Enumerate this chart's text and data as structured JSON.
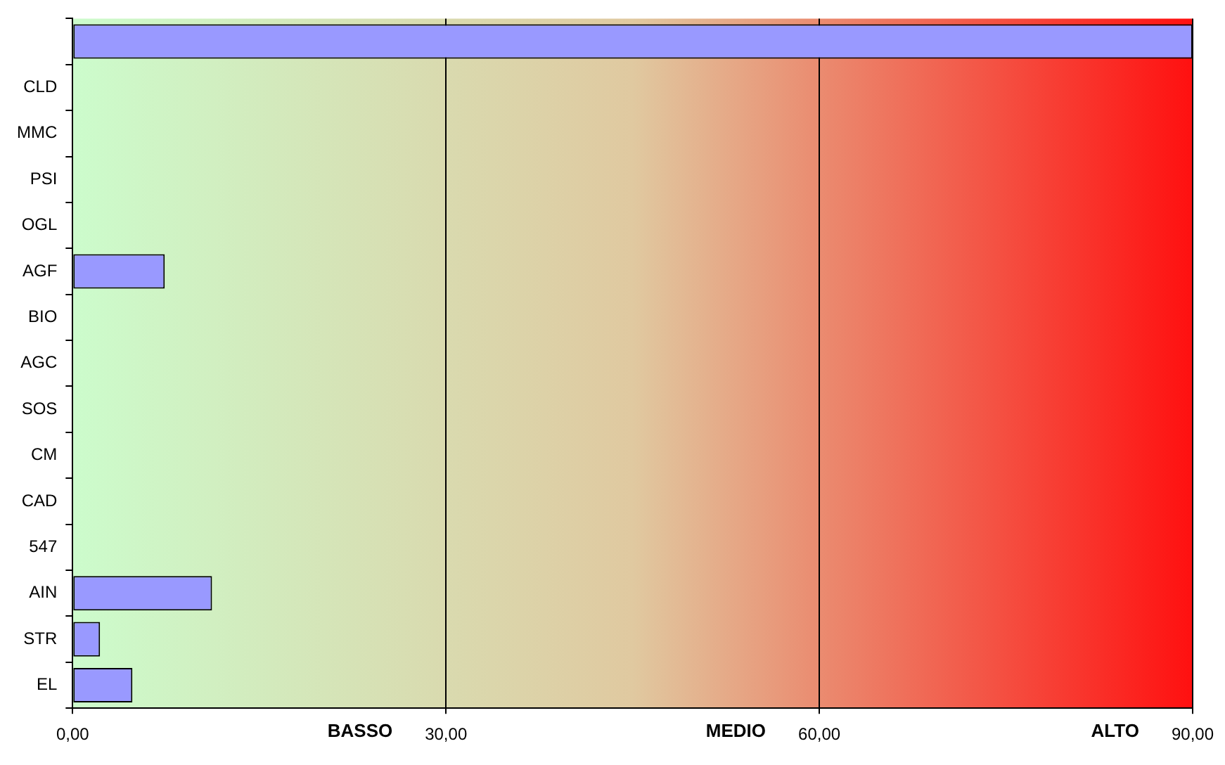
{
  "chart_data": {
    "type": "bar",
    "orientation": "horizontal",
    "categories": [
      null,
      "CLD",
      "MMC",
      "PSI",
      "OGL",
      "AGF",
      "BIO",
      "AGC",
      "SOS",
      "CM",
      "CAD",
      "547",
      "AIN",
      "STR",
      "EL"
    ],
    "values": [
      90,
      null,
      null,
      null,
      null,
      7.4,
      null,
      null,
      null,
      null,
      null,
      null,
      11.2,
      2.2,
      4.8
    ],
    "color": "#9999ff",
    "xlim": [
      0,
      90
    ],
    "xticks": [
      {
        "value": 0,
        "label": "0,00"
      },
      {
        "value": 30,
        "label": "30,00"
      },
      {
        "value": 60,
        "label": "60,00"
      },
      {
        "value": 90,
        "label": "90,00"
      }
    ],
    "bands": [
      {
        "axis": "x",
        "from": 0,
        "to": 30,
        "label": "BASSO",
        "color": "#ccfccc"
      },
      {
        "axis": "x",
        "from": 30,
        "to": 60,
        "label": "MEDIO",
        "color": "#e0c9a0"
      },
      {
        "axis": "x",
        "from": 60,
        "to": 90,
        "label": "ALTO",
        "color": "#ff1010"
      }
    ],
    "grid": "x",
    "legend": false
  }
}
